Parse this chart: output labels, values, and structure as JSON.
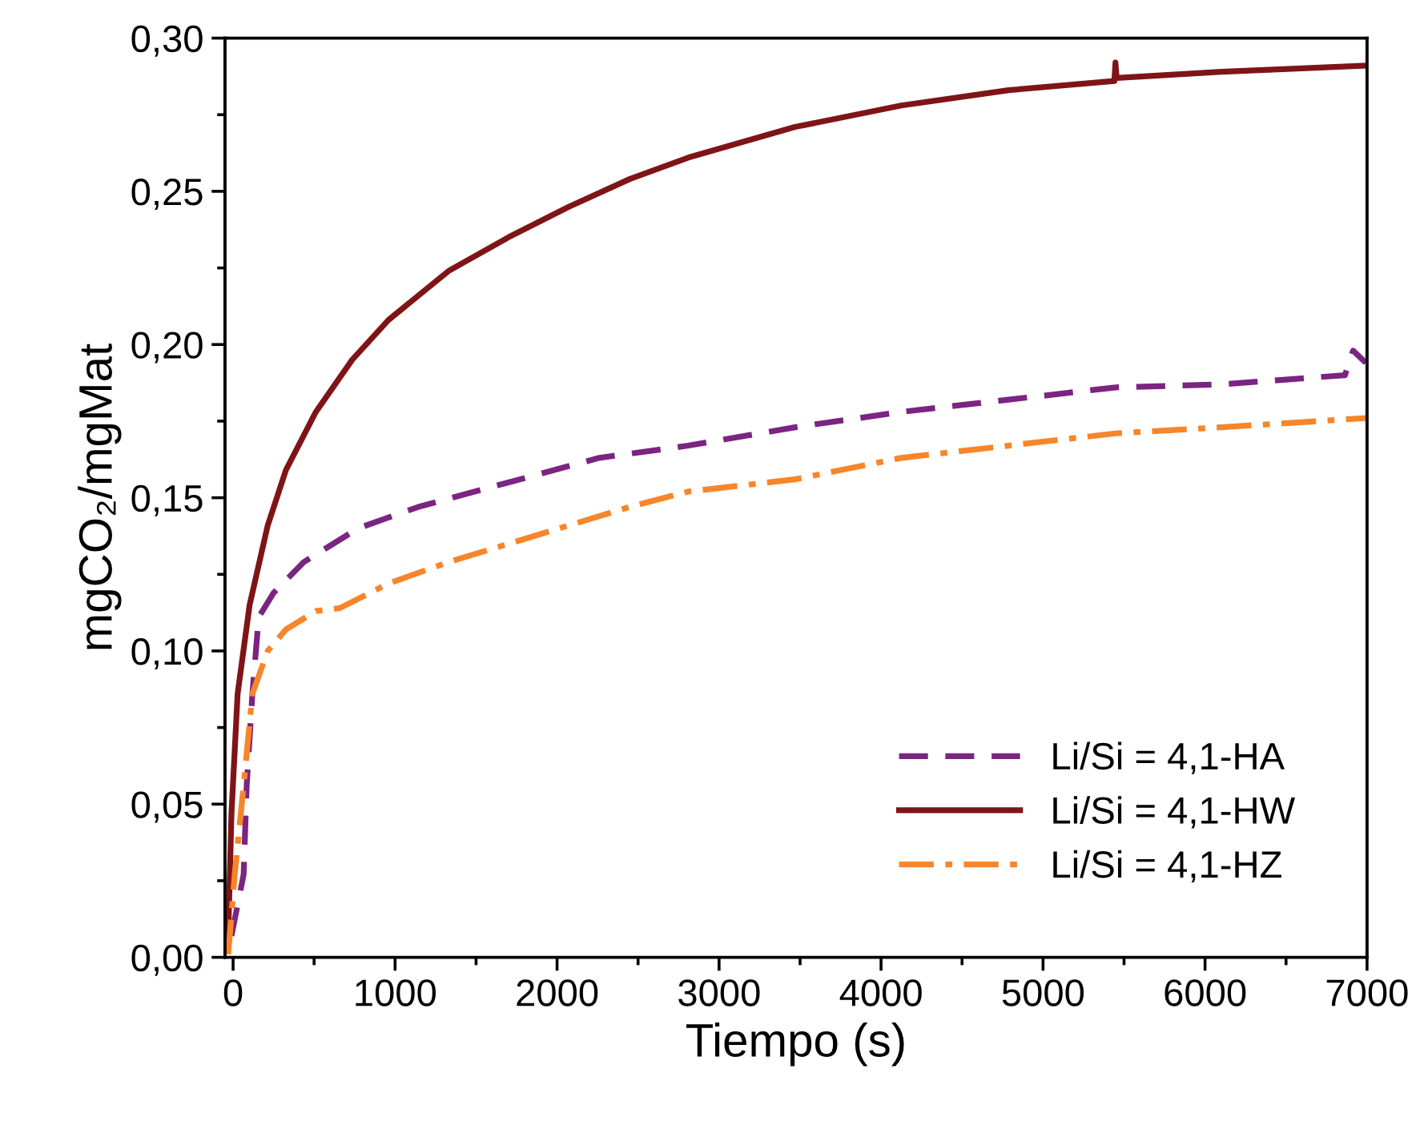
{
  "chart_data": {
    "type": "line",
    "xlabel": "Tiempo (s)",
    "ylabel": "mgCO₂/mgMat",
    "xlim": [
      -50,
      7000
    ],
    "xticks": [
      0,
      1000,
      2000,
      3000,
      4000,
      5000,
      6000,
      7000
    ],
    "ylim": [
      0,
      0.3
    ],
    "yticks": [
      {
        "value": 0,
        "label": "0,00"
      },
      {
        "value": 0.05,
        "label": "0,05"
      },
      {
        "value": 0.1,
        "label": "0,10"
      },
      {
        "value": 0.15,
        "label": "0,15"
      },
      {
        "value": 0.2,
        "label": "0,20"
      },
      {
        "value": 0.25,
        "label": "0,25"
      },
      {
        "value": 0.3,
        "label": "0,30"
      }
    ],
    "grid": false,
    "legend": "bottom right",
    "marker": "none",
    "series": [
      {
        "name": "Li/Si = 4,1-HA",
        "color": "#7b2481",
        "line_style": "dashed",
        "x": [
          -10,
          65,
          84,
          119,
          158,
          251,
          436,
          771,
          1144,
          1700,
          2260,
          2810,
          3469,
          4125,
          4787,
          5447,
          6103,
          6864,
          6914,
          6993
        ],
        "values": [
          0.007,
          0.027,
          0.056,
          0.086,
          0.111,
          0.119,
          0.129,
          0.14,
          0.147,
          0.155,
          0.163,
          0.167,
          0.173,
          0.178,
          0.182,
          0.186,
          0.187,
          0.19,
          0.198,
          0.194
        ]
      },
      {
        "name": "Li/Si = 4,1-HW",
        "color": "#7f1416",
        "line_style": "solid",
        "x": [
          -30,
          -10,
          28,
          102,
          214,
          326,
          511,
          735,
          959,
          1330,
          1700,
          2075,
          2448,
          2810,
          3469,
          4125,
          4787,
          5440,
          5447,
          5454,
          6103,
          6993
        ],
        "values": [
          0.007,
          0.047,
          0.086,
          0.115,
          0.141,
          0.159,
          0.178,
          0.195,
          0.208,
          0.224,
          0.235,
          0.245,
          0.254,
          0.261,
          0.271,
          0.278,
          0.283,
          0.286,
          0.292,
          0.287,
          0.289,
          0.291
        ]
      },
      {
        "name": "Li/Si = 4,1-HZ",
        "color": "#f7852a",
        "line_style": "dashdot",
        "x": [
          -30,
          10,
          65,
          119,
          214,
          326,
          511,
          660,
          959,
          1330,
          1889,
          2448,
          2810,
          3469,
          4125,
          4787,
          5447,
          6103,
          6993
        ],
        "values": [
          0.001,
          0.027,
          0.056,
          0.086,
          0.1,
          0.107,
          0.113,
          0.114,
          0.122,
          0.129,
          0.138,
          0.147,
          0.152,
          0.156,
          0.163,
          0.167,
          0.171,
          0.173,
          0.176
        ]
      }
    ]
  }
}
